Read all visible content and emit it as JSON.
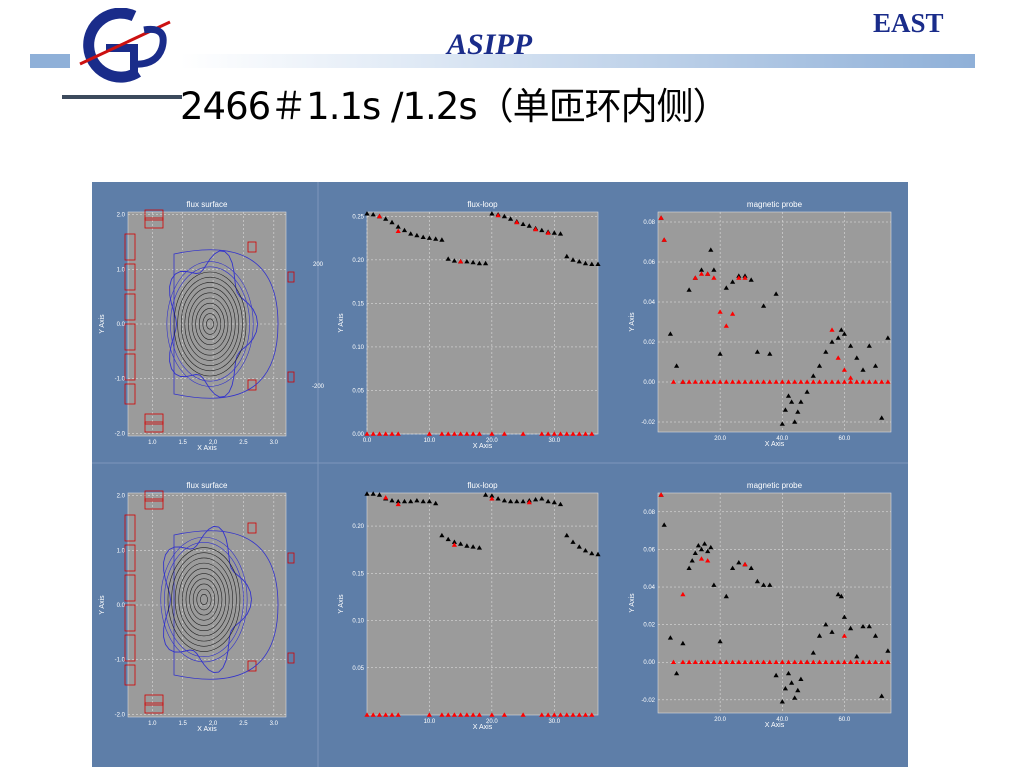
{
  "header": {
    "brand_right": "EAST",
    "institute": "ASIPP",
    "title": "2466＃1.1s /1.2s（单匝环内侧）"
  },
  "colors": {
    "accent": "#1a2c8a",
    "bar": "#8fb0d8",
    "figure_bg": "#5e7ea8",
    "plot_bg": "#9b9b9b",
    "measured_marker": "#000000",
    "fitted_marker": "#ff0000",
    "flux_surface_line": "#3333cc",
    "coil_outline": "#d40000"
  },
  "icons": [
    "asipp-logo-icon"
  ],
  "chart_data": [
    {
      "type": "scatter",
      "panel": "row1-flux-surface",
      "title": "flux surface",
      "xlabel": "X Axis",
      "ylabel": "Y Axis",
      "xticks": [
        "1.0",
        "1.5",
        "2.0",
        "2.5",
        "3.0"
      ],
      "yticks": [
        "2.0",
        "1.0",
        "0.0",
        "-1.0",
        "-2.0"
      ],
      "xlim": [
        0.6,
        3.2
      ],
      "ylim": [
        -2.05,
        2.05
      ],
      "center": [
        1.95,
        0.0
      ],
      "grid": true
    },
    {
      "type": "scatter",
      "panel": "row1-flux-loop",
      "title": "flux-loop",
      "xlabel": "X Axis",
      "ylabel": "Y Axis",
      "xticks": [
        "0.0",
        "10.0",
        "20.0",
        "30.0"
      ],
      "yticks": [
        "0.25",
        "0.20",
        "0.15",
        "0.10",
        "0.05",
        "0.00"
      ],
      "xlim": [
        0,
        37
      ],
      "ylim": [
        0,
        0.255
      ],
      "grid": true,
      "series": [
        {
          "name": "measured",
          "x": [
            0,
            1,
            2,
            3,
            4,
            5,
            6,
            7,
            8,
            9,
            10,
            11,
            12,
            13,
            14,
            15,
            16,
            17,
            18,
            19,
            20,
            21,
            22,
            23,
            24,
            25,
            26,
            27,
            28,
            29,
            30,
            31,
            32,
            33,
            34,
            35,
            36,
            37
          ],
          "y": [
            0.253,
            0.252,
            0.25,
            0.247,
            0.243,
            0.238,
            0.234,
            0.23,
            0.228,
            0.226,
            0.225,
            0.224,
            0.223,
            0.201,
            0.199,
            0.198,
            0.198,
            0.197,
            0.196,
            0.196,
            0.253,
            0.252,
            0.25,
            0.247,
            0.244,
            0.241,
            0.239,
            0.236,
            0.234,
            0.232,
            0.231,
            0.23,
            0.204,
            0.2,
            0.198,
            0.196,
            0.195,
            0.195
          ]
        },
        {
          "name": "fitted",
          "x": [
            2,
            5,
            15,
            21,
            24,
            27,
            29
          ],
          "y": [
            0.25,
            0.233,
            0.198,
            0.251,
            0.243,
            0.235,
            0.231
          ]
        },
        {
          "name": "fitted-baseline",
          "x": [
            0,
            1,
            2,
            3,
            4,
            5,
            10,
            12,
            13,
            14,
            15,
            16,
            17,
            18,
            20,
            22,
            25,
            28,
            29,
            30,
            31,
            32,
            33,
            34,
            35,
            36
          ],
          "y": [
            0,
            0,
            0,
            0,
            0,
            0,
            0,
            0,
            0,
            0,
            0,
            0,
            0,
            0,
            0,
            0,
            0,
            0,
            0,
            0,
            0,
            0,
            0,
            0,
            0,
            0
          ]
        }
      ]
    },
    {
      "type": "scatter",
      "panel": "row1-magnetic-probe",
      "title": "magnetic probe",
      "xlabel": "X Axis",
      "ylabel": "Y Axis",
      "xticks": [
        "20.0",
        "40.0",
        "60.0"
      ],
      "yticks": [
        "0.08",
        "0.06",
        "0.04",
        "0.02",
        "0.00",
        "-0.02"
      ],
      "xlim": [
        0,
        75
      ],
      "ylim": [
        -0.025,
        0.085
      ],
      "grid": true,
      "series": [
        {
          "name": "measured",
          "x": [
            1,
            2,
            4,
            6,
            8,
            10,
            12,
            14,
            16,
            17,
            18,
            20,
            22,
            24,
            26,
            28,
            30,
            32,
            34,
            36,
            38,
            40,
            41,
            42,
            43,
            44,
            45,
            46,
            48,
            50,
            52,
            54,
            56,
            58,
            59,
            60,
            62,
            64,
            66,
            68,
            70,
            72,
            74
          ],
          "y": [
            0.082,
            0.071,
            0.024,
            0.008,
            0.0,
            0.046,
            0.052,
            0.056,
            0.054,
            0.066,
            0.056,
            0.014,
            0.047,
            0.05,
            0.053,
            0.053,
            0.051,
            0.015,
            0.038,
            0.014,
            0.044,
            -0.021,
            -0.014,
            -0.007,
            -0.01,
            -0.02,
            -0.015,
            -0.01,
            -0.005,
            0.003,
            0.008,
            0.015,
            0.02,
            0.022,
            0.026,
            0.024,
            0.018,
            0.012,
            0.006,
            0.018,
            0.008,
            -0.018,
            0.022
          ]
        },
        {
          "name": "fitted",
          "x": [
            1,
            2,
            12,
            14,
            16,
            18,
            20,
            22,
            24,
            26,
            28,
            56,
            58,
            60,
            62
          ],
          "y": [
            0.082,
            0.071,
            0.052,
            0.054,
            0.054,
            0.052,
            0.035,
            0.028,
            0.034,
            0.052,
            0.052,
            0.026,
            0.012,
            0.006,
            0.002
          ]
        },
        {
          "name": "fitted-baseline",
          "x": [
            5,
            8,
            10,
            12,
            14,
            16,
            18,
            20,
            22,
            24,
            26,
            28,
            30,
            32,
            34,
            36,
            38,
            40,
            42,
            44,
            46,
            48,
            50,
            52,
            54,
            56,
            58,
            60,
            62,
            64,
            66,
            68,
            70,
            72,
            74
          ],
          "y": [
            0,
            0,
            0,
            0,
            0,
            0,
            0,
            0,
            0,
            0,
            0,
            0,
            0,
            0,
            0,
            0,
            0,
            0,
            0,
            0,
            0,
            0,
            0,
            0,
            0,
            0,
            0,
            0,
            0,
            0,
            0,
            0,
            0,
            0,
            0
          ]
        }
      ]
    },
    {
      "type": "scatter",
      "panel": "row2-flux-surface",
      "title": "flux surface",
      "xlabel": "X Axis",
      "ylabel": "Y Axis",
      "xticks": [
        "1.0",
        "1.5",
        "2.0",
        "2.5",
        "3.0"
      ],
      "yticks": [
        "2.0",
        "1.0",
        "0.0",
        "-1.0",
        "-2.0"
      ],
      "xlim": [
        0.6,
        3.2
      ],
      "ylim": [
        -2.05,
        2.05
      ],
      "center": [
        1.85,
        0.1
      ],
      "grid": true
    },
    {
      "type": "scatter",
      "panel": "row2-flux-loop",
      "title": "flux-loop",
      "xlabel": "X Axis",
      "ylabel": "Y Axis",
      "xticks": [
        "10.0",
        "20.0",
        "30.0"
      ],
      "yticks": [
        "0.20",
        "0.15",
        "0.10",
        "0.05"
      ],
      "xlim": [
        0,
        37
      ],
      "ylim": [
        0.0,
        0.235
      ],
      "grid": true,
      "series": [
        {
          "name": "measured",
          "x": [
            0,
            1,
            2,
            3,
            4,
            5,
            6,
            7,
            8,
            9,
            10,
            11,
            12,
            13,
            14,
            15,
            16,
            17,
            18,
            19,
            20,
            21,
            22,
            23,
            24,
            25,
            26,
            27,
            28,
            29,
            30,
            31,
            32,
            33,
            34,
            35,
            36,
            37
          ],
          "y": [
            0.234,
            0.234,
            0.233,
            0.229,
            0.227,
            0.226,
            0.226,
            0.226,
            0.227,
            0.226,
            0.226,
            0.224,
            0.19,
            0.186,
            0.183,
            0.181,
            0.179,
            0.178,
            0.177,
            0.233,
            0.232,
            0.229,
            0.227,
            0.226,
            0.226,
            0.226,
            0.227,
            0.228,
            0.229,
            0.226,
            0.225,
            0.223,
            0.19,
            0.183,
            0.178,
            0.174,
            0.171,
            0.17
          ]
        },
        {
          "name": "fitted",
          "x": [
            3,
            5,
            14,
            20,
            26
          ],
          "y": [
            0.23,
            0.223,
            0.18,
            0.229,
            0.225
          ]
        },
        {
          "name": "fitted-baseline",
          "x": [
            0,
            1,
            2,
            3,
            4,
            5,
            10,
            12,
            13,
            14,
            15,
            16,
            17,
            18,
            20,
            22,
            25,
            28,
            29,
            30,
            31,
            32,
            33,
            34,
            35,
            36
          ],
          "y": [
            0,
            0,
            0,
            0,
            0,
            0,
            0,
            0,
            0,
            0,
            0,
            0,
            0,
            0,
            0,
            0,
            0,
            0,
            0,
            0,
            0,
            0,
            0,
            0,
            0,
            0
          ]
        }
      ]
    },
    {
      "type": "scatter",
      "panel": "row2-magnetic-probe",
      "title": "magnetic probe",
      "xlabel": "X Axis",
      "ylabel": "Y Axis",
      "xticks": [
        "20.0",
        "40.0",
        "60.0"
      ],
      "yticks": [
        "0.08",
        "0.06",
        "0.04",
        "0.02",
        "0.00",
        "-0.02"
      ],
      "xlim": [
        0,
        75
      ],
      "ylim": [
        -0.027,
        0.09
      ],
      "grid": true,
      "series": [
        {
          "name": "measured",
          "x": [
            1,
            2,
            4,
            6,
            8,
            10,
            11,
            12,
            13,
            14,
            15,
            16,
            17,
            18,
            20,
            22,
            24,
            26,
            28,
            30,
            32,
            34,
            36,
            38,
            40,
            41,
            42,
            43,
            44,
            45,
            46,
            48,
            50,
            52,
            54,
            56,
            58,
            59,
            60,
            62,
            64,
            66,
            68,
            70,
            72,
            74
          ],
          "y": [
            0.089,
            0.073,
            0.013,
            -0.006,
            0.01,
            0.05,
            0.054,
            0.058,
            0.062,
            0.06,
            0.063,
            0.059,
            0.061,
            0.041,
            0.011,
            0.035,
            0.05,
            0.053,
            0.052,
            0.05,
            0.043,
            0.041,
            0.041,
            -0.007,
            -0.021,
            -0.014,
            -0.006,
            -0.011,
            -0.019,
            -0.015,
            -0.009,
            0.0,
            0.005,
            0.014,
            0.02,
            0.016,
            0.036,
            0.035,
            0.024,
            0.018,
            0.003,
            0.019,
            0.019,
            0.014,
            -0.018,
            0.006
          ]
        },
        {
          "name": "fitted",
          "x": [
            1,
            8,
            14,
            16,
            28,
            60
          ],
          "y": [
            0.089,
            0.036,
            0.055,
            0.054,
            0.052,
            0.014
          ]
        },
        {
          "name": "fitted-baseline",
          "x": [
            5,
            8,
            10,
            12,
            14,
            16,
            18,
            20,
            22,
            24,
            26,
            28,
            30,
            32,
            34,
            36,
            38,
            40,
            42,
            44,
            46,
            48,
            50,
            52,
            54,
            56,
            58,
            60,
            62,
            64,
            66,
            68,
            70,
            72,
            74
          ],
          "y": [
            0,
            0,
            0,
            0,
            0,
            0,
            0,
            0,
            0,
            0,
            0,
            0,
            0,
            0,
            0,
            0,
            0,
            0,
            0,
            0,
            0,
            0,
            0,
            0,
            0,
            0,
            0,
            0,
            0,
            0,
            0,
            0,
            0,
            0,
            0
          ]
        }
      ]
    }
  ],
  "fragments": {
    "tick_200": "200",
    "tick_m200": "-200"
  }
}
